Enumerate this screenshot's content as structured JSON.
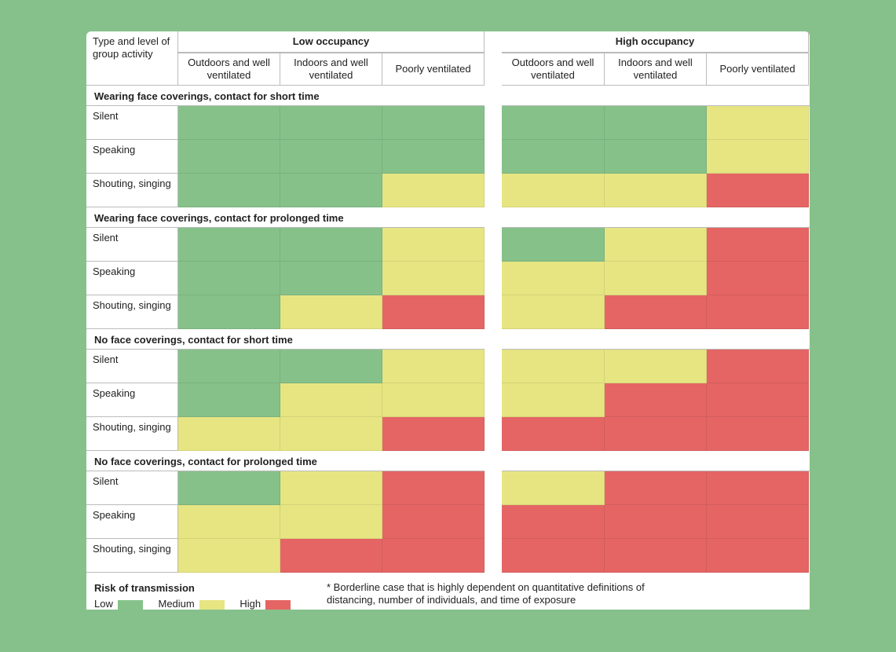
{
  "colors": {
    "low": "#86c18a",
    "medium": "#e6e582",
    "high": "#e56565"
  },
  "header": {
    "corner": "Type and level of group activity",
    "groups": [
      "Low occupancy",
      "High occupancy"
    ],
    "columns": [
      "Outdoors and well ventilated",
      "Indoors and well ventilated",
      "Poorly ventilated",
      "Outdoors and well ventilated",
      "Indoors and well ventilated",
      "Poorly ventilated"
    ]
  },
  "sections": [
    {
      "title": "Wearing face coverings, contact for short time",
      "rows": [
        {
          "label": "Silent",
          "risk": [
            "low",
            "low",
            "low",
            "low",
            "low",
            "medium"
          ]
        },
        {
          "label": "Speaking",
          "risk": [
            "low",
            "low",
            "low",
            "low",
            "low",
            "medium"
          ]
        },
        {
          "label": "Shouting, singing",
          "risk": [
            "low",
            "low",
            "medium",
            "medium",
            "medium",
            "high"
          ]
        }
      ]
    },
    {
      "title": "Wearing face coverings, contact for prolonged time",
      "rows": [
        {
          "label": "Silent",
          "risk": [
            "low",
            "low",
            "medium",
            "low",
            "medium",
            "high"
          ]
        },
        {
          "label": "Speaking",
          "risk": [
            "low",
            "low",
            "medium",
            "medium",
            "medium",
            "high"
          ]
        },
        {
          "label": "Shouting, singing",
          "risk": [
            "low",
            "medium",
            "high",
            "medium",
            "high",
            "high"
          ]
        }
      ]
    },
    {
      "title": "No face coverings, contact for short time",
      "rows": [
        {
          "label": "Silent",
          "risk": [
            "low",
            "low",
            "medium",
            "medium",
            "medium",
            "high"
          ]
        },
        {
          "label": "Speaking",
          "risk": [
            "low",
            "medium",
            "medium",
            "medium",
            "high",
            "high"
          ]
        },
        {
          "label": "Shouting, singing",
          "risk": [
            "medium",
            "medium",
            "high",
            "high",
            "high",
            "high"
          ]
        }
      ]
    },
    {
      "title": "No face coverings, contact for prolonged time",
      "rows": [
        {
          "label": "Silent",
          "risk": [
            "low",
            "medium",
            "high",
            "medium",
            "high",
            "high"
          ]
        },
        {
          "label": "Speaking",
          "risk": [
            "medium",
            "medium",
            "high",
            "high",
            "high",
            "high"
          ]
        },
        {
          "label": "Shouting, singing",
          "risk": [
            "medium",
            "high",
            "high",
            "high",
            "high",
            "high"
          ]
        }
      ]
    }
  ],
  "legend": {
    "title": "Risk of transmission",
    "low": "Low",
    "medium": "Medium",
    "high": "High",
    "note": "* Borderline case that is highly dependent on quantitative definitions of distancing, number of individuals, and time of exposure"
  }
}
